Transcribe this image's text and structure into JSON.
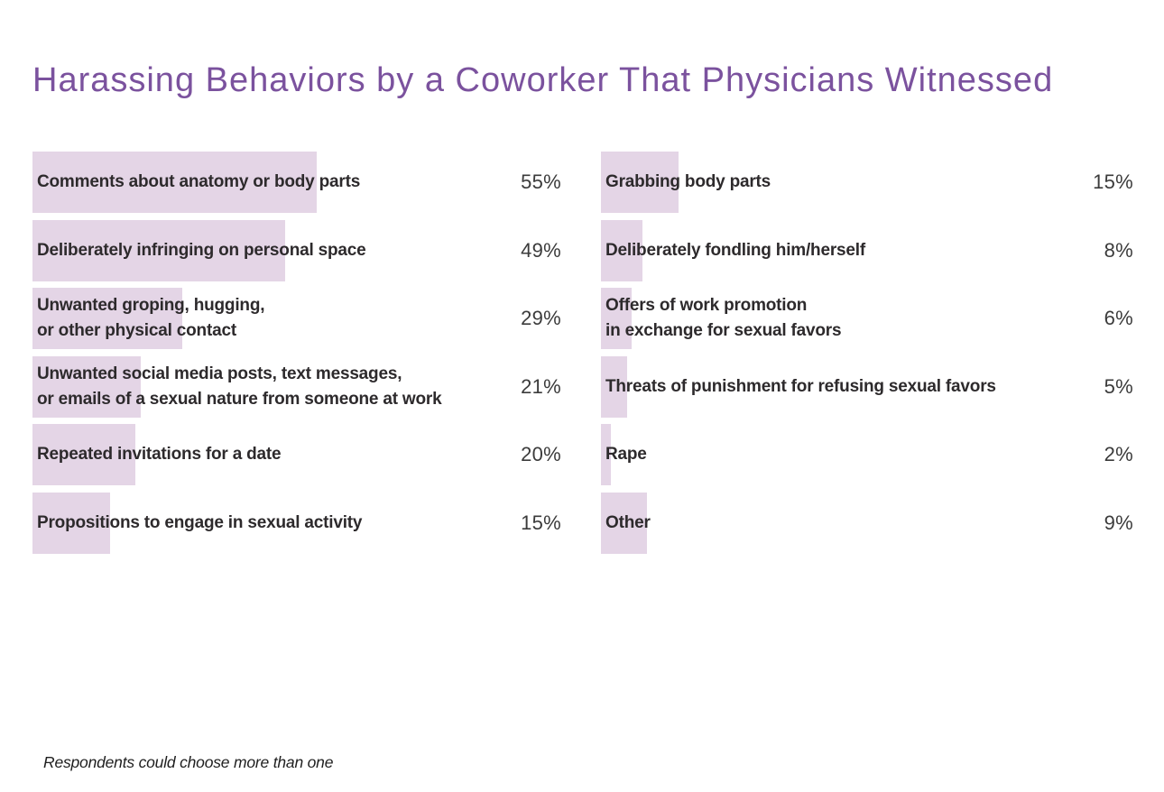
{
  "title": "Harassing Behaviors by a Coworker That Physicians Witnessed",
  "footnote": "Respondents could choose more than one",
  "colors": {
    "title": "#7b529e",
    "bar": "#e4d5e6",
    "label": "#2d2a2c",
    "value": "#3b3b3b",
    "background": "#ffffff"
  },
  "chart_data": {
    "type": "bar",
    "orientation": "horizontal",
    "unit": "percent",
    "title": "Harassing Behaviors by a Coworker That Physicians Witnessed",
    "note": "Respondents could choose more than one",
    "value_range": [
      0,
      55
    ],
    "legend": "none",
    "grid": false,
    "columns": [
      {
        "name": "left",
        "items": [
          {
            "label": "Comments about anatomy or body parts",
            "value": 55,
            "display": "55%"
          },
          {
            "label": "Deliberately infringing on personal space",
            "value": 49,
            "display": "49%"
          },
          {
            "label": "Unwanted groping, hugging,\nor other physical contact",
            "value": 29,
            "display": "29%"
          },
          {
            "label": "Unwanted social media posts, text messages,\nor emails of a sexual nature from someone at work",
            "value": 21,
            "display": "21%"
          },
          {
            "label": "Repeated invitations for a date",
            "value": 20,
            "display": "20%"
          },
          {
            "label": "Propositions to engage in sexual activity",
            "value": 15,
            "display": "15%"
          }
        ]
      },
      {
        "name": "right",
        "items": [
          {
            "label": "Grabbing body parts",
            "value": 15,
            "display": "15%"
          },
          {
            "label": "Deliberately fondling him/herself",
            "value": 8,
            "display": "8%"
          },
          {
            "label": "Offers of work promotion\nin exchange for sexual favors",
            "value": 6,
            "display": "6%"
          },
          {
            "label": "Threats of punishment for refusing sexual favors",
            "value": 5,
            "display": "5%"
          },
          {
            "label": "Rape",
            "value": 2,
            "display": "2%"
          },
          {
            "label": "Other",
            "value": 9,
            "display": "9%"
          }
        ]
      }
    ]
  }
}
